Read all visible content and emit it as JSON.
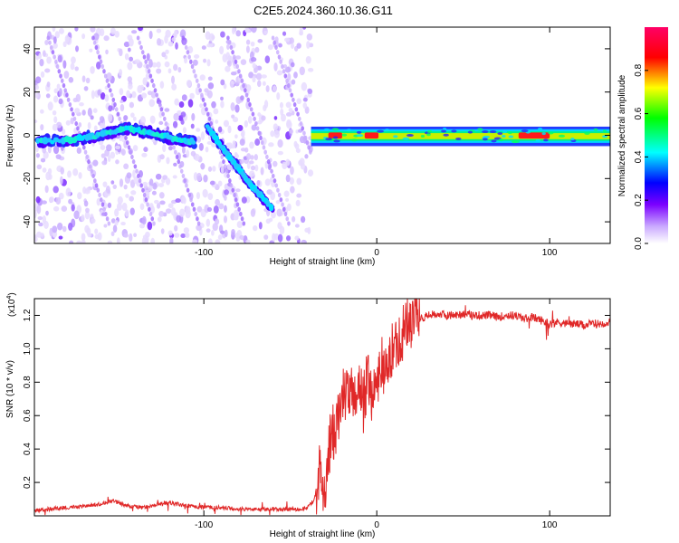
{
  "title": "C2E5.2024.360.10.36.G11",
  "chart_data": [
    {
      "type": "heatmap",
      "xlabel": "Height of straight line (km)",
      "ylabel": "Frequency (Hz)",
      "xlim": [
        -198,
        135
      ],
      "ylim": [
        -50,
        50
      ],
      "xticks": [
        -100,
        0,
        100
      ],
      "yticks": [
        -40,
        -20,
        0,
        20,
        40
      ],
      "colorbar": {
        "label": "Normalized spectral amplitude",
        "range": [
          0,
          1
        ],
        "ticks": [
          "0.0",
          "0.2",
          "0.4",
          "0.6",
          "0.8"
        ],
        "colors": [
          "#ffffff",
          "#7b00ff",
          "#0000ff",
          "#00ffff",
          "#00ff00",
          "#ffff00",
          "#ff0000",
          "#ff0066"
        ]
      },
      "traces": [
        {
          "desc": "band near 0 Hz, left section",
          "x": [
            -196,
            -175,
            -160,
            -145,
            -130,
            -115,
            -105
          ],
          "y": [
            -3,
            -2,
            0,
            3,
            1,
            -2,
            -3
          ]
        },
        {
          "desc": "descending track",
          "x": [
            -98,
            -90,
            -82,
            -75,
            -68,
            -60
          ],
          "y": [
            4,
            -5,
            -13,
            -21,
            -27,
            -34
          ]
        },
        {
          "desc": "strong band near 0 Hz, right section",
          "x": [
            -38,
            -25,
            -10,
            0,
            10,
            30,
            60,
            95,
            135
          ],
          "y": [
            1,
            1,
            0,
            1,
            -1,
            0,
            0,
            -1,
            -1
          ]
        }
      ]
    },
    {
      "type": "line",
      "xlabel": "Height of straight line (km)",
      "ylabel": "SNR (10 * v/v)",
      "yscale_label": "(x10",
      "yscale_exp": "4",
      "xlim": [
        -198,
        135
      ],
      "ylim": [
        0,
        1.3
      ],
      "xticks": [
        -100,
        0,
        100
      ],
      "yticks": [
        "0.2",
        "0.4",
        "0.6",
        "0.8",
        "1.0",
        "1.2"
      ],
      "color": "#e02828",
      "x": [
        -198,
        -190,
        -180,
        -170,
        -160,
        -152,
        -145,
        -135,
        -125,
        -120,
        -110,
        -100,
        -90,
        -80,
        -70,
        -60,
        -50,
        -45,
        -40,
        -36,
        -33,
        -30,
        -28,
        -25,
        -22,
        -20,
        -18,
        -15,
        -12,
        -10,
        -8,
        -5,
        -2,
        0,
        3,
        6,
        9,
        12,
        15,
        18,
        21,
        25,
        30,
        35,
        40,
        45,
        50,
        55,
        60,
        65,
        70,
        75,
        80,
        85,
        90,
        95,
        100,
        105,
        110,
        115,
        120,
        125,
        130,
        135
      ],
      "y": [
        0.03,
        0.04,
        0.05,
        0.06,
        0.07,
        0.09,
        0.06,
        0.05,
        0.07,
        0.08,
        0.06,
        0.05,
        0.05,
        0.04,
        0.04,
        0.04,
        0.04,
        0.04,
        0.05,
        0.1,
        0.3,
        0.05,
        0.4,
        0.5,
        0.6,
        0.7,
        0.75,
        0.7,
        0.75,
        0.8,
        0.65,
        0.85,
        0.7,
        0.8,
        0.9,
        0.85,
        1.0,
        1.05,
        1.1,
        1.15,
        1.17,
        1.18,
        1.2,
        1.21,
        1.2,
        1.2,
        1.21,
        1.2,
        1.2,
        1.2,
        1.19,
        1.2,
        1.2,
        1.18,
        1.19,
        1.17,
        1.15,
        1.16,
        1.15,
        1.15,
        1.14,
        1.15,
        1.15,
        1.16
      ]
    }
  ]
}
